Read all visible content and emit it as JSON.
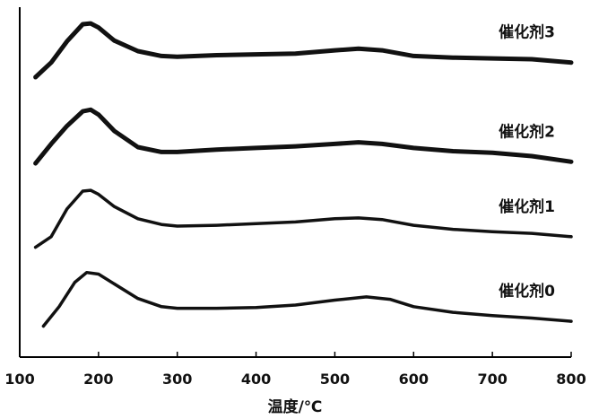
{
  "chart_data": {
    "type": "line",
    "title": "",
    "xlabel": "温度/℃",
    "ylabel": "",
    "xlim": [
      100,
      800
    ],
    "x_ticks": [
      100,
      200,
      300,
      400,
      500,
      600,
      700,
      800
    ],
    "grid": false,
    "legend": "none",
    "colors": {
      "line": "#111111",
      "axis": "#000000"
    },
    "series": [
      {
        "name": "催化剂3",
        "x": [
          120,
          140,
          160,
          180,
          190,
          200,
          220,
          250,
          280,
          300,
          350,
          400,
          450,
          500,
          530,
          560,
          600,
          650,
          700,
          750,
          800
        ],
        "y": [
          3.44,
          3.62,
          3.88,
          4.09,
          4.1,
          4.05,
          3.89,
          3.76,
          3.7,
          3.69,
          3.71,
          3.72,
          3.73,
          3.77,
          3.79,
          3.77,
          3.7,
          3.68,
          3.67,
          3.66,
          3.62
        ]
      },
      {
        "name": "催化剂2",
        "x": [
          120,
          140,
          160,
          180,
          190,
          200,
          220,
          250,
          280,
          300,
          350,
          400,
          450,
          500,
          530,
          560,
          600,
          650,
          700,
          750,
          800
        ],
        "y": [
          2.38,
          2.62,
          2.84,
          3.02,
          3.04,
          2.98,
          2.78,
          2.58,
          2.52,
          2.52,
          2.55,
          2.57,
          2.59,
          2.62,
          2.64,
          2.62,
          2.57,
          2.53,
          2.51,
          2.47,
          2.4
        ]
      },
      {
        "name": "催化剂1",
        "x": [
          120,
          140,
          160,
          180,
          190,
          200,
          220,
          250,
          280,
          300,
          350,
          400,
          450,
          500,
          530,
          560,
          600,
          650,
          700,
          750,
          800
        ],
        "y": [
          1.35,
          1.48,
          1.82,
          2.04,
          2.05,
          2.0,
          1.85,
          1.7,
          1.63,
          1.61,
          1.62,
          1.64,
          1.66,
          1.7,
          1.71,
          1.69,
          1.62,
          1.57,
          1.54,
          1.52,
          1.48
        ]
      },
      {
        "name": "催化剂0",
        "x": [
          130,
          150,
          170,
          185,
          200,
          220,
          250,
          280,
          300,
          350,
          400,
          450,
          500,
          540,
          570,
          600,
          650,
          700,
          750,
          800
        ],
        "y": [
          0.38,
          0.62,
          0.92,
          1.04,
          1.02,
          0.9,
          0.72,
          0.62,
          0.6,
          0.6,
          0.61,
          0.64,
          0.7,
          0.74,
          0.71,
          0.62,
          0.55,
          0.51,
          0.48,
          0.44
        ]
      }
    ]
  }
}
